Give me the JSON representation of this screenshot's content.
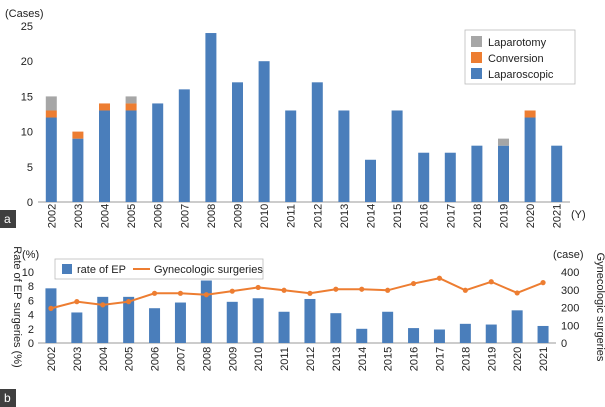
{
  "colors": {
    "laparoscopic": "#4a7ebb",
    "conversion": "#ed7d31",
    "laparotomy": "#a6a6a6",
    "line": "#ed7d31",
    "panel_label_bg": "#3f3f3f"
  },
  "chart_data": [
    {
      "panel": "a",
      "type": "bar",
      "stacked": true,
      "ylabel": "(Cases)",
      "xlabel": "(Y)",
      "ylim": [
        0,
        25
      ],
      "yticks": [
        0,
        5,
        10,
        15,
        20,
        25
      ],
      "categories": [
        "2002",
        "2003",
        "2004",
        "2005",
        "2006",
        "2007",
        "2008",
        "2009",
        "2010",
        "2011",
        "2012",
        "2013",
        "2014",
        "2015",
        "2016",
        "2017",
        "2018",
        "2019",
        "2020",
        "2021"
      ],
      "series": [
        {
          "name": "Laparoscopic",
          "color_key": "laparoscopic",
          "values": [
            12,
            9,
            13,
            13,
            14,
            16,
            24,
            17,
            20,
            13,
            17,
            13,
            6,
            13,
            7,
            7,
            8,
            8,
            12,
            8
          ]
        },
        {
          "name": "Conversion",
          "color_key": "conversion",
          "values": [
            1,
            1,
            1,
            1,
            0,
            0,
            0,
            0,
            0,
            0,
            0,
            0,
            0,
            0,
            0,
            0,
            0,
            0,
            1,
            0
          ]
        },
        {
          "name": "Laparotomy",
          "color_key": "laparotomy",
          "values": [
            2,
            0,
            0,
            1,
            0,
            0,
            0,
            0,
            0,
            0,
            0,
            0,
            0,
            0,
            0,
            0,
            0,
            1,
            0,
            0
          ]
        }
      ],
      "legend": [
        "Laparotomy",
        "Conversion",
        "Laparoscopic"
      ],
      "legend_position": "top-right"
    },
    {
      "panel": "b",
      "type": "bar+line",
      "y_left_label": "Rate of EP surgeries (%)",
      "y_left_unit": "(%)",
      "y_left_lim": [
        0,
        10
      ],
      "y_left_ticks": [
        0,
        2,
        4,
        6,
        8,
        10
      ],
      "y_right_label": "Gynecologic surgeries",
      "y_right_unit": "(case)",
      "y_right_lim": [
        0,
        400
      ],
      "y_right_ticks": [
        0,
        100,
        200,
        300,
        400
      ],
      "categories": [
        "2002",
        "2003",
        "2004",
        "2005",
        "2006",
        "2007",
        "2008",
        "2009",
        "2010",
        "2011",
        "2012",
        "2013",
        "2014",
        "2015",
        "2016",
        "2017",
        "2018",
        "2019",
        "2020",
        "2021"
      ],
      "bars": {
        "name": "rate of EP",
        "axis": "left",
        "values": [
          7.7,
          4.3,
          6.5,
          6.5,
          4.9,
          5.7,
          8.8,
          5.8,
          6.3,
          4.4,
          6.2,
          4.2,
          2.0,
          4.4,
          2.1,
          1.9,
          2.7,
          2.6,
          4.6,
          2.4
        ]
      },
      "line": {
        "name": "Gynecologic surgeries",
        "axis": "right",
        "values": [
          195,
          233,
          215,
          233,
          280,
          280,
          272,
          292,
          313,
          297,
          280,
          303,
          303,
          297,
          335,
          365,
          297,
          345,
          282,
          340
        ]
      },
      "legend": [
        "rate of EP",
        "Gynecologic surgeries"
      ],
      "legend_position": "top-left"
    }
  ],
  "panel_labels": [
    "a",
    "b"
  ]
}
